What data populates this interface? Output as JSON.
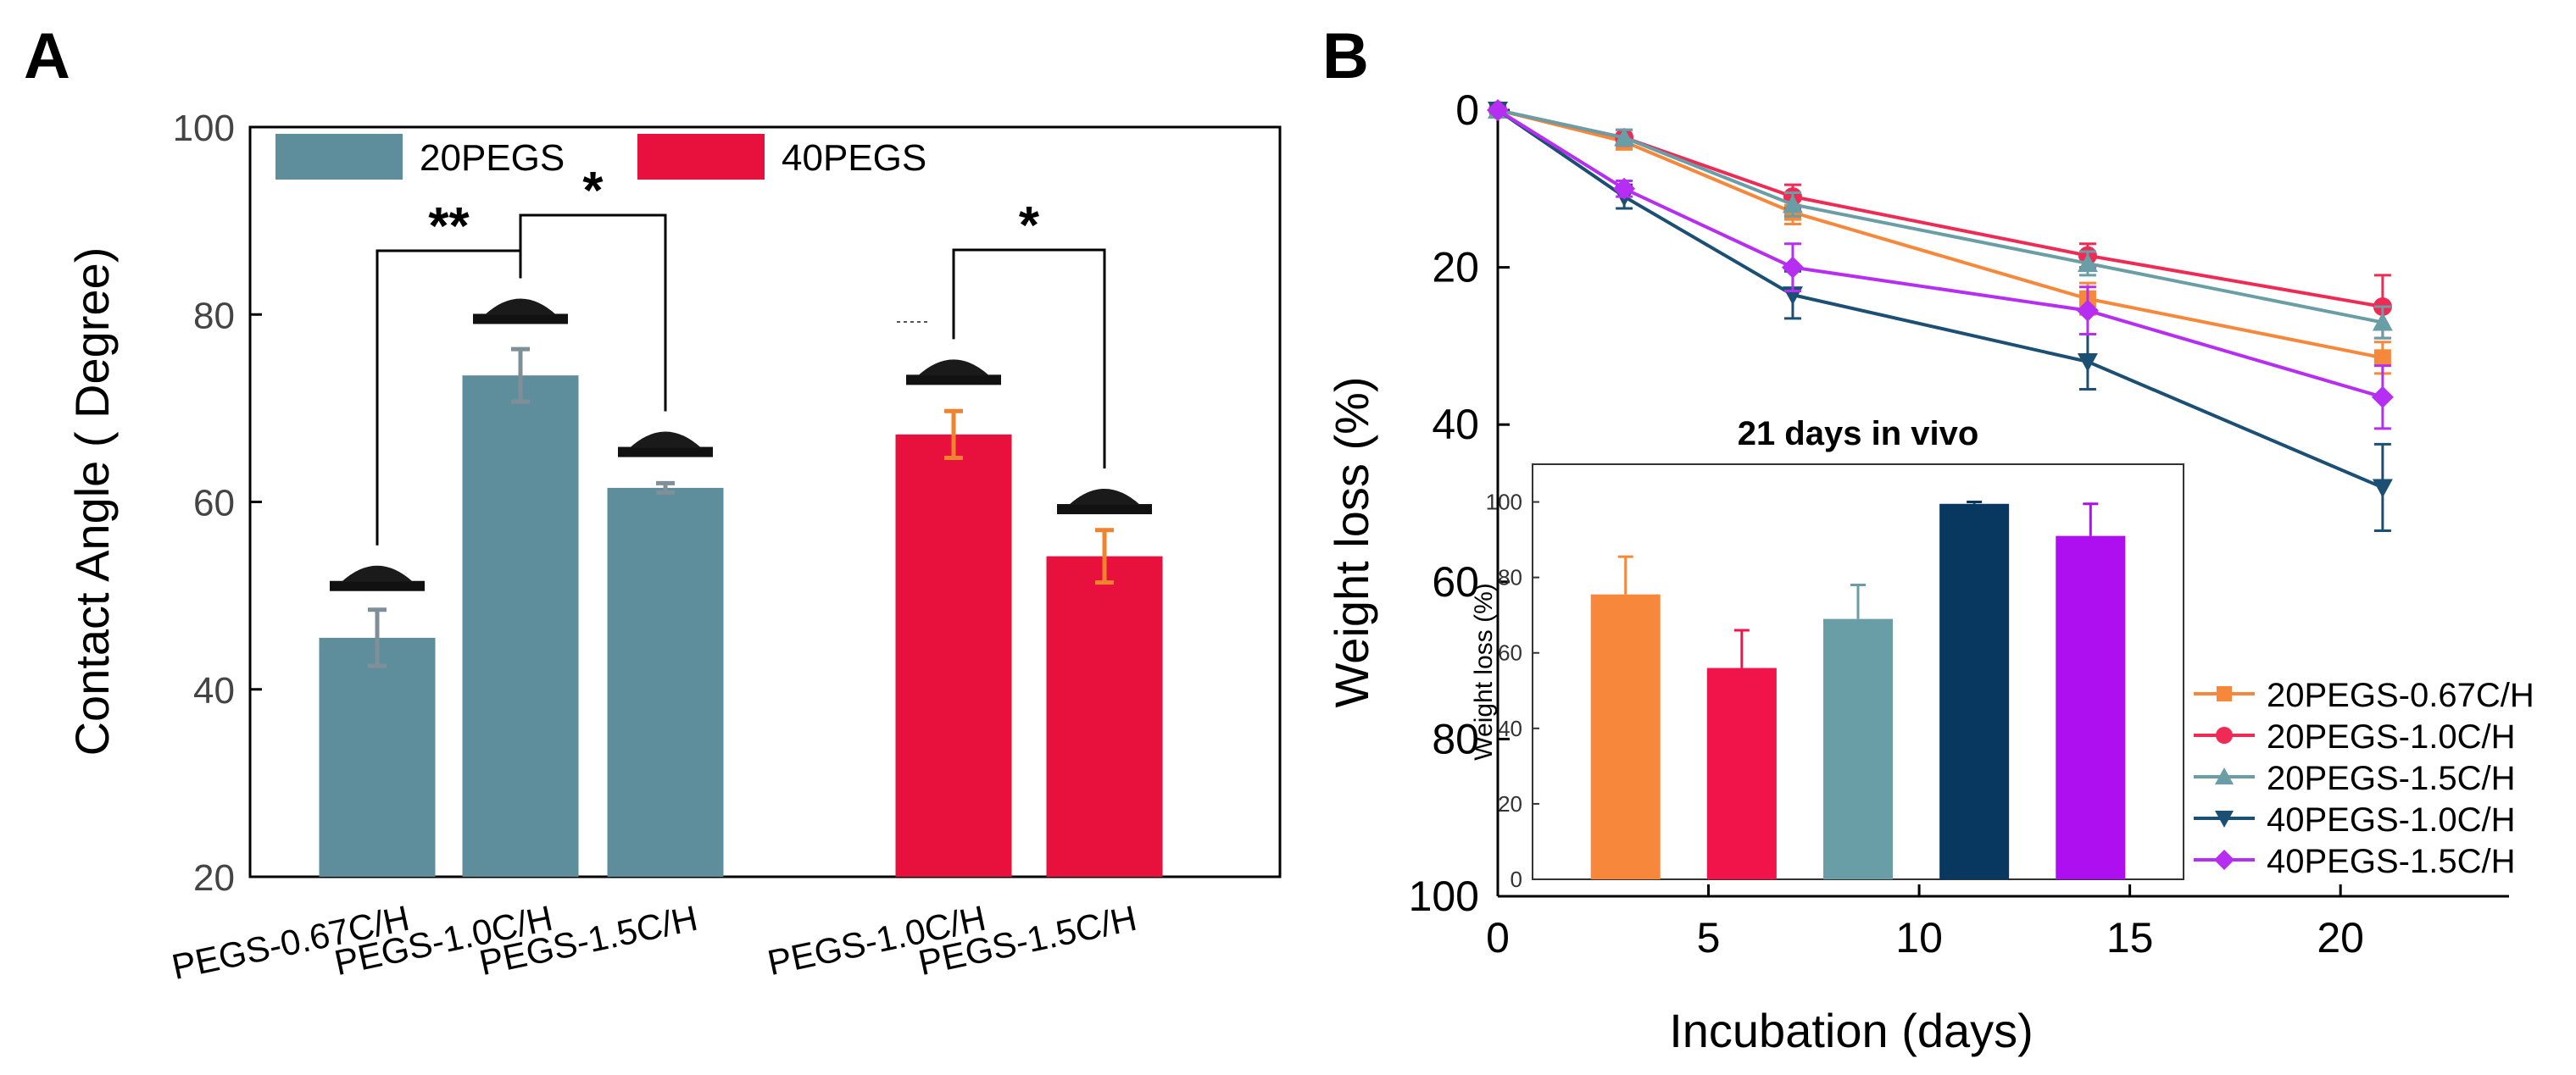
{
  "panel_a_letter": "A",
  "panel_b_letter": "B",
  "chart_data": [
    {
      "id": "A",
      "type": "bar",
      "title": "",
      "xlabel": "",
      "ylabel": "Contact Angle ( Degree)",
      "ylim": [
        20,
        100
      ],
      "yticks": [
        20,
        40,
        60,
        80,
        100
      ],
      "legend": {
        "placement": "top-left",
        "entries": [
          {
            "label": "20PEGS",
            "color": "#5e8e9b"
          },
          {
            "label": "40PEGS",
            "color": "#e8103c"
          }
        ]
      },
      "groups": [
        {
          "name": "20PEGS",
          "color": "#5e8e9b",
          "error_color": "#7f8f97",
          "categories": [
            "PEGS-0.67C/H",
            "PEGS-1.0C/H",
            "PEGS-1.5C/H"
          ],
          "values": [
            45.5,
            73.5,
            61.5
          ],
          "errors": [
            3,
            2.8,
            0.5
          ],
          "droplet_angles": [
            51.3,
            79.8,
            65.6
          ]
        },
        {
          "name": "40PEGS",
          "color": "#e8103c",
          "error_color": "#f0832d",
          "categories": [
            "PEGS-1.0C/H",
            "PEGS-1.5C/H"
          ],
          "values": [
            67.2,
            54.2
          ],
          "errors": [
            2.5,
            2.8
          ],
          "droplet_angles": [
            73.3,
            59.5
          ]
        }
      ],
      "significance": [
        {
          "label": "**",
          "from": "20PEGS PEGS-0.67C/H",
          "to": "20PEGS PEGS-1.0C/H"
        },
        {
          "label": "*",
          "from": "20PEGS PEGS-1.0C/H",
          "to": "20PEGS PEGS-1.5C/H"
        },
        {
          "label": "*",
          "from": "40PEGS PEGS-1.0C/H",
          "to": "40PEGS PEGS-1.5C/H"
        }
      ]
    },
    {
      "id": "B",
      "type": "line",
      "title": "",
      "xlabel": "Incubation (days)",
      "ylabel": "Weight loss (%)",
      "xlim": [
        0,
        24
      ],
      "ylim": [
        0,
        100
      ],
      "y_inverted": true,
      "xticks": [
        0,
        5,
        10,
        15,
        20
      ],
      "yticks": [
        0,
        20,
        40,
        60,
        80,
        100
      ],
      "x": [
        0,
        3,
        7,
        14,
        21
      ],
      "legend_placement": "bottom-right",
      "series": [
        {
          "name": "20PEGS-0.67C/H",
          "color": "#f7873a",
          "marker": "square",
          "values": [
            0,
            4,
            13,
            24,
            31.5
          ],
          "errors": [
            0,
            1,
            1.5,
            2,
            2
          ]
        },
        {
          "name": "20PEGS-1.0C/H",
          "color": "#ef2a55",
          "marker": "circle",
          "values": [
            0,
            3.5,
            11,
            18.5,
            25
          ],
          "errors": [
            0,
            1,
            1.5,
            1.5,
            4
          ]
        },
        {
          "name": "20PEGS-1.5C/H",
          "color": "#6a9ea6",
          "marker": "triangle-up",
          "values": [
            0,
            3.5,
            12,
            19.5,
            27
          ],
          "errors": [
            0,
            1,
            1.5,
            1.5,
            2
          ]
        },
        {
          "name": "40PEGS-1.0C/H",
          "color": "#1b4f74",
          "marker": "triangle-down",
          "values": [
            0,
            11,
            23.5,
            32,
            48
          ],
          "errors": [
            0,
            1.5,
            3,
            3.5,
            5.5
          ]
        },
        {
          "name": "40PEGS-1.5C/H",
          "color": "#b62ef2",
          "marker": "diamond",
          "values": [
            0,
            10,
            20,
            25.5,
            36.5
          ],
          "errors": [
            0,
            1,
            3,
            3,
            4
          ]
        }
      ],
      "inset": {
        "type": "bar",
        "title": "21 days in vivo",
        "ylabel": "Weight loss (%)",
        "ylim": [
          0,
          110
        ],
        "yticks": [
          0,
          20,
          40,
          60,
          80,
          100
        ],
        "categories": [
          "20PEGS-0.67C/H",
          "20PEGS-1.0C/H",
          "20PEGS-1.5C/H",
          "40PEGS-1.0C/H",
          "40PEGS-1.5C/H"
        ],
        "values": [
          75.5,
          56,
          69,
          99.5,
          91
        ],
        "errors": [
          10,
          10,
          9,
          0.5,
          8.5
        ],
        "colors": [
          "#f7873a",
          "#f0144a",
          "#6a9ea6",
          "#08375f",
          "#ad0ff0"
        ]
      }
    }
  ]
}
